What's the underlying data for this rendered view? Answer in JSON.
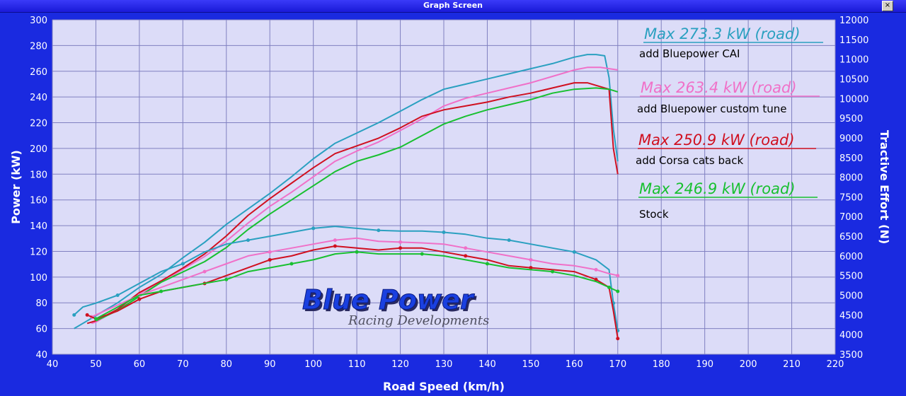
{
  "window": {
    "title": "Graph Screen",
    "close_label": "×"
  },
  "chart_data": {
    "type": "line",
    "xlabel": "Road Speed (km/h)",
    "ylabel": "Power (kW)",
    "y2label": "Tractive Effort (N)",
    "xlim": [
      40,
      220
    ],
    "ylim": [
      40,
      300
    ],
    "y2lim": [
      3500,
      12000
    ],
    "xticks": [
      40,
      50,
      60,
      70,
      80,
      90,
      100,
      110,
      120,
      130,
      140,
      150,
      160,
      170,
      180,
      190,
      200,
      210,
      220
    ],
    "yticks": [
      40,
      60,
      80,
      100,
      120,
      140,
      160,
      180,
      200,
      220,
      240,
      260,
      280,
      300
    ],
    "y2ticks": [
      3500,
      4000,
      4500,
      5000,
      5500,
      6000,
      6500,
      7000,
      7500,
      8000,
      8500,
      9000,
      9500,
      10000,
      10500,
      11000,
      11500,
      12000
    ],
    "grid": true,
    "background": "#dcdcf8",
    "colors": {
      "cai": "#2aa0c0",
      "tune": "#f070c8",
      "cats": "#d01020",
      "stock": "#18c030"
    },
    "annotations": [
      {
        "max": "Max 273.3 kW (road)",
        "note": "add Bluepower CAI",
        "color": "#2aa0c0"
      },
      {
        "max": "Max 263.4 kW (road)",
        "note": "add Bluepower custom tune",
        "color": "#f070c8"
      },
      {
        "max": "Max 250.9 kW (road)",
        "note": "add Corsa cats back",
        "color": "#d01020"
      },
      {
        "max": "Max 246.9 kW (road)",
        "note": "Stock",
        "color": "#18c030"
      }
    ],
    "series": [
      {
        "key": "cai",
        "color": "#2aa0c0",
        "axis": "left",
        "kind": "power",
        "x": [
          45,
          48,
          50,
          55,
          60,
          65,
          70,
          75,
          80,
          85,
          90,
          95,
          100,
          105,
          110,
          115,
          120,
          125,
          130,
          135,
          140,
          145,
          150,
          155,
          160,
          163,
          165,
          167,
          168,
          169,
          170
        ],
        "y": [
          60,
          66,
          70,
          80,
          92,
          102,
          115,
          127,
          141,
          153,
          165,
          178,
          192,
          204,
          212,
          220,
          229,
          238,
          246,
          250,
          254,
          258,
          262,
          266,
          271,
          273,
          273,
          272,
          255,
          215,
          190
        ]
      },
      {
        "key": "tune",
        "color": "#f070c8",
        "axis": "left",
        "kind": "power",
        "x": [
          49,
          50,
          55,
          60,
          65,
          70,
          75,
          80,
          85,
          90,
          95,
          100,
          105,
          110,
          115,
          120,
          125,
          130,
          135,
          140,
          145,
          150,
          155,
          160,
          163,
          166,
          168,
          170
        ],
        "y": [
          64,
          65,
          75,
          87,
          96,
          106,
          116,
          128,
          142,
          155,
          166,
          178,
          190,
          198,
          205,
          214,
          223,
          233,
          239,
          243,
          247,
          251,
          256,
          261,
          263,
          263,
          262,
          261
        ]
      },
      {
        "key": "cats",
        "color": "#d01020",
        "axis": "left",
        "kind": "power",
        "x": [
          48,
          50,
          55,
          60,
          65,
          70,
          75,
          80,
          85,
          90,
          95,
          100,
          105,
          110,
          115,
          120,
          125,
          130,
          135,
          140,
          145,
          150,
          155,
          160,
          163,
          166,
          168,
          169,
          170
        ],
        "y": [
          64,
          66,
          75,
          88,
          97,
          107,
          118,
          132,
          148,
          161,
          173,
          185,
          196,
          202,
          208,
          216,
          225,
          230,
          233,
          236,
          240,
          243,
          247,
          251,
          251,
          248,
          246,
          200,
          180
        ]
      },
      {
        "key": "stock",
        "color": "#18c030",
        "axis": "left",
        "kind": "power",
        "x": [
          50,
          55,
          60,
          65,
          70,
          75,
          80,
          85,
          90,
          95,
          100,
          105,
          110,
          115,
          120,
          125,
          130,
          135,
          140,
          145,
          150,
          155,
          160,
          165,
          168,
          170
        ],
        "y": [
          66,
          74,
          85,
          96,
          104,
          112,
          123,
          137,
          149,
          160,
          171,
          182,
          190,
          195,
          201,
          210,
          219,
          225,
          230,
          234,
          238,
          243,
          246,
          247,
          246,
          244
        ]
      },
      {
        "key": "cai",
        "color": "#2aa0c0",
        "axis": "right",
        "kind": "tractive",
        "x": [
          45,
          47,
          50,
          55,
          60,
          65,
          70,
          75,
          80,
          85,
          90,
          95,
          100,
          105,
          110,
          115,
          120,
          125,
          130,
          135,
          140,
          145,
          150,
          155,
          160,
          165,
          168,
          169,
          170
        ],
        "y": [
          4500,
          4700,
          4800,
          5000,
          5300,
          5600,
          5800,
          6100,
          6300,
          6400,
          6500,
          6600,
          6700,
          6750,
          6700,
          6650,
          6630,
          6630,
          6600,
          6550,
          6450,
          6400,
          6300,
          6200,
          6100,
          5900,
          5650,
          4800,
          4100
        ]
      },
      {
        "key": "tune",
        "color": "#f070c8",
        "axis": "right",
        "kind": "tractive",
        "x": [
          49,
          50,
          55,
          60,
          65,
          70,
          75,
          80,
          85,
          90,
          95,
          100,
          105,
          110,
          115,
          120,
          125,
          130,
          135,
          140,
          145,
          150,
          155,
          160,
          165,
          168,
          170
        ],
        "y": [
          4450,
          4500,
          4750,
          5000,
          5200,
          5400,
          5600,
          5800,
          6000,
          6100,
          6200,
          6300,
          6400,
          6450,
          6370,
          6350,
          6330,
          6300,
          6200,
          6100,
          6000,
          5900,
          5800,
          5750,
          5650,
          5550,
          5500
        ]
      },
      {
        "key": "cats",
        "color": "#d01020",
        "axis": "right",
        "kind": "tractive",
        "x": [
          48,
          50,
          55,
          60,
          65,
          70,
          75,
          80,
          85,
          90,
          95,
          100,
          105,
          110,
          115,
          120,
          125,
          130,
          135,
          140,
          145,
          150,
          155,
          160,
          165,
          168,
          169,
          170
        ],
        "y": [
          4500,
          4400,
          4600,
          4900,
          5100,
          5200,
          5300,
          5500,
          5700,
          5900,
          6000,
          6150,
          6250,
          6200,
          6150,
          6200,
          6200,
          6100,
          6000,
          5900,
          5750,
          5700,
          5650,
          5600,
          5400,
          5200,
          4600,
          3900
        ]
      },
      {
        "key": "stock",
        "color": "#18c030",
        "axis": "right",
        "kind": "tractive",
        "x": [
          50,
          55,
          60,
          65,
          70,
          75,
          80,
          85,
          90,
          95,
          100,
          105,
          110,
          115,
          120,
          125,
          130,
          135,
          140,
          145,
          150,
          155,
          160,
          165,
          168,
          170
        ],
        "y": [
          4400,
          4700,
          5000,
          5100,
          5200,
          5300,
          5400,
          5600,
          5700,
          5800,
          5900,
          6050,
          6100,
          6050,
          6050,
          6050,
          6000,
          5900,
          5800,
          5700,
          5650,
          5600,
          5500,
          5350,
          5200,
          5100
        ]
      }
    ]
  },
  "logo": {
    "main": "Blue Power",
    "sub": "Racing Developments"
  }
}
